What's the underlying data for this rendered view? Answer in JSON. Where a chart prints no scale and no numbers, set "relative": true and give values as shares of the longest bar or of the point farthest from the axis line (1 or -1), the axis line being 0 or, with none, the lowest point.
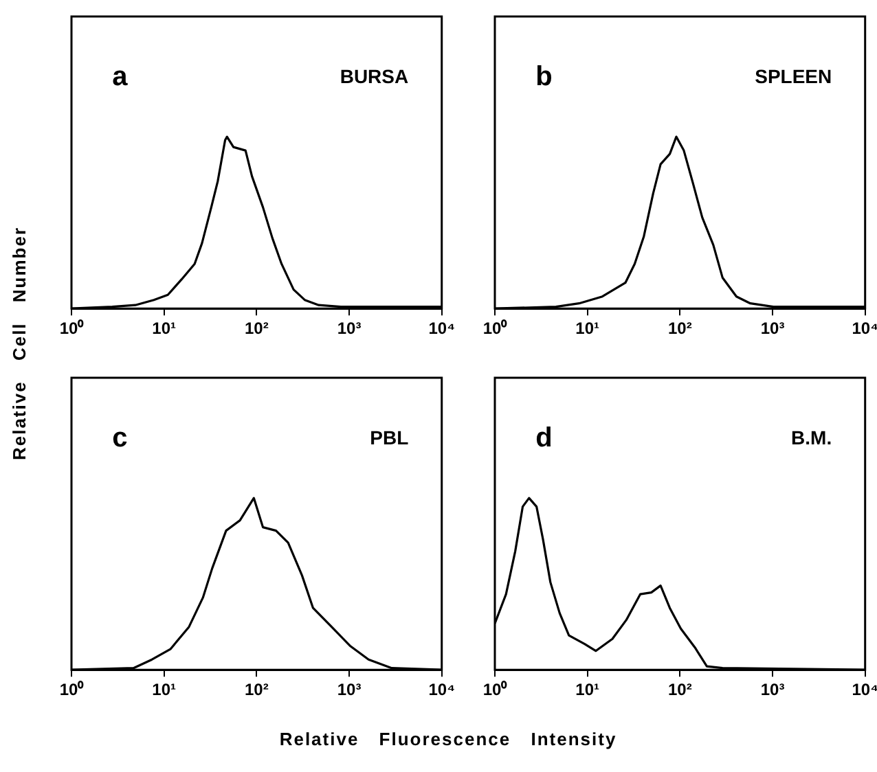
{
  "chart_data": [
    {
      "type": "line",
      "title": "a",
      "annotations": [
        "BURSA"
      ],
      "ylabel": "Relative Cell Number",
      "relative": true,
      "log": "x",
      "xlim": [
        1,
        10000
      ],
      "xticks": [
        {
          "value": 1,
          "label": "10⁰"
        },
        {
          "value": 10,
          "label": "10¹"
        },
        {
          "value": 100,
          "label": "10²"
        },
        {
          "value": 1000,
          "label": "10³"
        },
        {
          "value": 10000,
          "label": "10⁴"
        }
      ],
      "series": [
        {
          "color": "#000000",
          "x": [
            1,
            2.75,
            4.9,
            7.76,
            11,
            15.5,
            21.4,
            25.7,
            32.4,
            38,
            45.7,
            47.9,
            56.2,
            75.9,
            89.1,
            117,
            148,
            186,
            251,
            331,
            468,
            813,
            10000
          ],
          "values": [
            0,
            0.01,
            0.02,
            0.05,
            0.08,
            0.17,
            0.26,
            0.38,
            0.59,
            0.74,
            0.98,
            1.0,
            0.94,
            0.92,
            0.77,
            0.59,
            0.41,
            0.26,
            0.11,
            0.05,
            0.02,
            0.01,
            0.01
          ]
        }
      ]
    },
    {
      "type": "line",
      "title": "b",
      "annotations": [
        "SPLEEN"
      ],
      "relative": true,
      "log": "x",
      "xlim": [
        1,
        10000
      ],
      "xticks": [
        {
          "value": 1,
          "label": "10⁰"
        },
        {
          "value": 10,
          "label": "10¹"
        },
        {
          "value": 100,
          "label": "10²"
        },
        {
          "value": 1000,
          "label": "10³"
        },
        {
          "value": 10000,
          "label": "10⁴"
        }
      ],
      "series": [
        {
          "color": "#000000",
          "x": [
            1,
            4.57,
            8.13,
            14.5,
            25.7,
            32.4,
            40.7,
            51.3,
            61.7,
            77.6,
            91.2,
            110,
            138,
            174,
            229,
            288,
            407,
            575,
            1020,
            10000
          ],
          "values": [
            0,
            0.01,
            0.03,
            0.07,
            0.15,
            0.26,
            0.42,
            0.67,
            0.84,
            0.9,
            1.0,
            0.92,
            0.73,
            0.53,
            0.37,
            0.18,
            0.07,
            0.03,
            0.01,
            0.01
          ]
        }
      ]
    },
    {
      "type": "line",
      "title": "c",
      "annotations": [
        "PBL"
      ],
      "xlabel": "Relative Fluorescence Intensity",
      "relative": true,
      "log": "x",
      "xlim": [
        1,
        10000
      ],
      "xticks": [
        {
          "value": 1,
          "label": "10⁰"
        },
        {
          "value": 10,
          "label": "10¹"
        },
        {
          "value": 100,
          "label": "10²"
        },
        {
          "value": 1000,
          "label": "10³"
        },
        {
          "value": 10000,
          "label": "10⁴"
        }
      ],
      "series": [
        {
          "color": "#000000",
          "x": [
            1,
            4.68,
            7.41,
            11.7,
            18.6,
            26.3,
            33.1,
            46.8,
            66.1,
            93.3,
            117,
            162,
            219,
            309,
            407,
            646,
            1020,
            1620,
            2880,
            10000
          ],
          "values": [
            0,
            0.01,
            0.06,
            0.12,
            0.25,
            0.42,
            0.59,
            0.81,
            0.87,
            1.0,
            0.83,
            0.81,
            0.74,
            0.55,
            0.36,
            0.25,
            0.14,
            0.06,
            0.01,
            0
          ]
        }
      ]
    },
    {
      "type": "line",
      "title": "d",
      "annotations": [
        "B.M."
      ],
      "relative": true,
      "log": "x",
      "xlim": [
        1,
        10000
      ],
      "xticks": [
        {
          "value": 1,
          "label": "10⁰"
        },
        {
          "value": 10,
          "label": "10¹"
        },
        {
          "value": 100,
          "label": "10²"
        },
        {
          "value": 1000,
          "label": "10³"
        },
        {
          "value": 10000,
          "label": "10⁴"
        }
      ],
      "series": [
        {
          "color": "#000000",
          "x": [
            1,
            1.32,
            1.66,
            2.0,
            2.34,
            2.82,
            3.31,
            3.98,
            5.01,
            6.31,
            9.33,
            12.3,
            18.6,
            26.3,
            37.2,
            49,
            61.7,
            77.6,
            102,
            145,
            195,
            288,
            10000
          ],
          "values": [
            0.27,
            0.44,
            0.69,
            0.95,
            1.0,
            0.95,
            0.76,
            0.51,
            0.33,
            0.2,
            0.15,
            0.11,
            0.18,
            0.29,
            0.44,
            0.45,
            0.49,
            0.36,
            0.24,
            0.13,
            0.02,
            0.01,
            0
          ]
        }
      ]
    }
  ]
}
